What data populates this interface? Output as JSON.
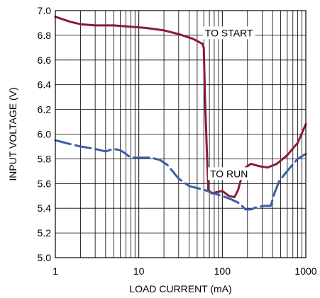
{
  "chart_data": {
    "type": "line",
    "title": "",
    "xlabel": "LOAD CURRENT (mA)",
    "ylabel": "INPUT VOLTAGE (V)",
    "xscale": "log",
    "xlim": [
      1,
      1000
    ],
    "ylim": [
      5.0,
      7.0
    ],
    "grid": true,
    "x_ticks": [
      {
        "value": 1,
        "label": "1"
      },
      {
        "value": 10,
        "label": "10"
      },
      {
        "value": 100,
        "label": "100"
      },
      {
        "value": 1000,
        "label": "1000"
      }
    ],
    "y_ticks": [
      {
        "value": 5.0,
        "label": "5.0"
      },
      {
        "value": 5.2,
        "label": "5.2"
      },
      {
        "value": 5.4,
        "label": "5.4"
      },
      {
        "value": 5.6,
        "label": "5.6"
      },
      {
        "value": 5.8,
        "label": "5.8"
      },
      {
        "value": 6.0,
        "label": "6.0"
      },
      {
        "value": 6.2,
        "label": "6.2"
      },
      {
        "value": 6.4,
        "label": "6.4"
      },
      {
        "value": 6.6,
        "label": "6.6"
      },
      {
        "value": 6.8,
        "label": "6.8"
      },
      {
        "value": 7.0,
        "label": "7.0"
      }
    ],
    "series": [
      {
        "name": "TO START",
        "color": "#8b1a3c",
        "style": "solid",
        "points": [
          [
            1,
            6.95
          ],
          [
            1.5,
            6.91
          ],
          [
            2,
            6.89
          ],
          [
            3,
            6.88
          ],
          [
            5,
            6.88
          ],
          [
            8,
            6.87
          ],
          [
            12,
            6.86
          ],
          [
            20,
            6.84
          ],
          [
            30,
            6.81
          ],
          [
            45,
            6.77
          ],
          [
            58,
            6.73
          ],
          [
            60,
            6.7
          ],
          [
            62,
            6.3
          ],
          [
            65,
            5.9
          ],
          [
            68,
            5.55
          ],
          [
            75,
            5.52
          ],
          [
            85,
            5.53
          ],
          [
            100,
            5.54
          ],
          [
            120,
            5.5
          ],
          [
            140,
            5.49
          ],
          [
            155,
            5.55
          ],
          [
            170,
            5.65
          ],
          [
            190,
            5.73
          ],
          [
            220,
            5.76
          ],
          [
            280,
            5.74
          ],
          [
            350,
            5.73
          ],
          [
            450,
            5.76
          ],
          [
            600,
            5.83
          ],
          [
            800,
            5.93
          ],
          [
            1000,
            6.08
          ]
        ]
      },
      {
        "name": "TO RUN",
        "color": "#3b5ea8",
        "style": "dashed",
        "points": [
          [
            1,
            5.95
          ],
          [
            1.5,
            5.92
          ],
          [
            2,
            5.9
          ],
          [
            3,
            5.88
          ],
          [
            4,
            5.86
          ],
          [
            5,
            5.88
          ],
          [
            6,
            5.87
          ],
          [
            7,
            5.84
          ],
          [
            8,
            5.81
          ],
          [
            10,
            5.81
          ],
          [
            14,
            5.81
          ],
          [
            18,
            5.79
          ],
          [
            22,
            5.75
          ],
          [
            30,
            5.64
          ],
          [
            40,
            5.58
          ],
          [
            60,
            5.55
          ],
          [
            80,
            5.52
          ],
          [
            100,
            5.5
          ],
          [
            130,
            5.47
          ],
          [
            160,
            5.44
          ],
          [
            190,
            5.39
          ],
          [
            220,
            5.39
          ],
          [
            260,
            5.41
          ],
          [
            320,
            5.42
          ],
          [
            380,
            5.42
          ],
          [
            420,
            5.52
          ],
          [
            480,
            5.62
          ],
          [
            550,
            5.67
          ],
          [
            650,
            5.73
          ],
          [
            800,
            5.8
          ],
          [
            1000,
            5.84
          ]
        ]
      }
    ],
    "annotations": [
      {
        "text": "TO START",
        "x": 120,
        "y": 6.82
      },
      {
        "text": "TO RUN",
        "x": 120,
        "y": 5.68
      }
    ]
  }
}
